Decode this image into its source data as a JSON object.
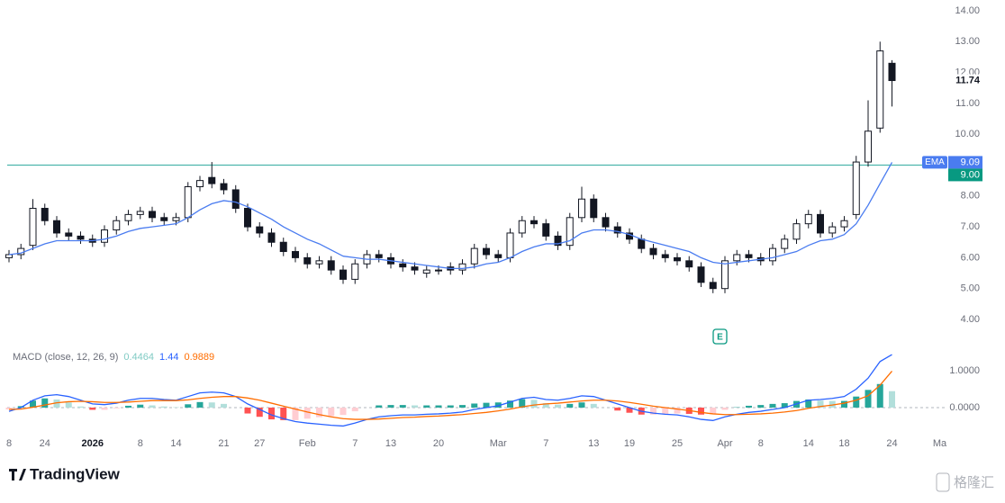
{
  "chart_data": [
    {
      "type": "candlestick",
      "categories": [
        "8",
        null,
        null,
        "24",
        null,
        null,
        null,
        "2026",
        null,
        null,
        null,
        "8",
        null,
        null,
        "14",
        null,
        null,
        null,
        "21",
        null,
        null,
        "27",
        null,
        null,
        null,
        "Feb",
        null,
        null,
        null,
        "7",
        null,
        null,
        "13",
        null,
        null,
        null,
        "20",
        null,
        null,
        null,
        null,
        "Mar",
        null,
        null,
        null,
        "7",
        null,
        null,
        null,
        "13",
        null,
        null,
        "19",
        null,
        null,
        null,
        "25",
        null,
        null,
        null,
        "Apr",
        null,
        null,
        "8",
        null,
        null,
        null,
        "14",
        null,
        null,
        "18",
        null,
        null,
        null,
        "24",
        null,
        null,
        null,
        "Ma"
      ],
      "open": [
        6.0,
        6.1,
        6.4,
        7.6,
        7.2,
        6.8,
        6.7,
        6.6,
        6.5,
        6.9,
        7.2,
        7.4,
        7.5,
        7.3,
        7.2,
        7.3,
        8.3,
        8.6,
        8.4,
        8.2,
        7.6,
        7.0,
        6.8,
        6.5,
        6.2,
        6.0,
        5.8,
        5.9,
        5.6,
        5.3,
        5.8,
        6.1,
        6.0,
        5.8,
        5.7,
        5.5,
        5.6,
        5.7,
        5.6,
        5.8,
        6.3,
        6.1,
        6.0,
        6.8,
        7.2,
        7.1,
        6.7,
        6.4,
        7.3,
        7.9,
        7.3,
        7.0,
        6.8,
        6.6,
        6.3,
        6.1,
        6.0,
        5.9,
        5.7,
        5.2,
        5.0,
        5.9,
        6.1,
        6.0,
        5.9,
        6.3,
        6.6,
        7.1,
        7.4,
        6.8,
        7.0,
        7.4,
        9.1,
        10.2,
        12.3,
        null,
        null,
        null,
        null
      ],
      "high": [
        6.25,
        6.45,
        7.9,
        7.75,
        7.35,
        6.95,
        6.85,
        6.75,
        7.05,
        7.35,
        7.55,
        7.65,
        7.65,
        7.45,
        7.45,
        8.45,
        8.65,
        9.1,
        8.55,
        8.35,
        7.75,
        7.15,
        6.95,
        6.65,
        6.35,
        6.15,
        6.05,
        6.05,
        5.75,
        5.95,
        6.25,
        6.25,
        6.15,
        5.95,
        5.85,
        5.75,
        5.75,
        5.85,
        5.95,
        6.45,
        6.45,
        6.25,
        6.95,
        7.35,
        7.35,
        7.25,
        6.85,
        7.45,
        8.3,
        8.05,
        7.45,
        7.15,
        6.95,
        6.75,
        6.45,
        6.25,
        6.15,
        6.05,
        5.85,
        5.35,
        6.05,
        6.25,
        6.25,
        6.15,
        6.45,
        6.75,
        7.25,
        7.55,
        7.55,
        7.15,
        7.35,
        9.3,
        11.1,
        13.0,
        12.4,
        null,
        null,
        null,
        null
      ],
      "low": [
        5.85,
        5.95,
        6.25,
        7.05,
        6.65,
        6.55,
        6.45,
        6.35,
        6.35,
        6.75,
        7.05,
        7.25,
        7.15,
        7.05,
        7.05,
        7.15,
        8.15,
        8.25,
        8.05,
        7.45,
        6.85,
        6.65,
        6.35,
        6.05,
        5.85,
        5.65,
        5.65,
        5.45,
        5.15,
        5.15,
        5.65,
        5.85,
        5.65,
        5.55,
        5.45,
        5.35,
        5.45,
        5.45,
        5.45,
        5.65,
        5.95,
        5.85,
        5.85,
        6.65,
        6.95,
        6.55,
        6.25,
        6.25,
        7.15,
        7.15,
        6.85,
        6.65,
        6.45,
        6.15,
        5.95,
        5.85,
        5.75,
        5.55,
        5.05,
        4.85,
        4.85,
        5.75,
        5.85,
        5.75,
        5.75,
        6.15,
        6.45,
        6.95,
        6.65,
        6.65,
        6.85,
        7.25,
        8.95,
        10.05,
        10.9,
        null,
        null,
        null,
        null
      ],
      "close": [
        6.1,
        6.3,
        7.6,
        7.2,
        6.8,
        6.7,
        6.6,
        6.5,
        6.9,
        7.2,
        7.4,
        7.5,
        7.3,
        7.2,
        7.3,
        8.3,
        8.5,
        8.4,
        8.2,
        7.6,
        7.0,
        6.8,
        6.5,
        6.2,
        6.0,
        5.8,
        5.9,
        5.6,
        5.3,
        5.8,
        6.1,
        6.0,
        5.8,
        5.7,
        5.6,
        5.6,
        5.6,
        5.6,
        5.8,
        6.3,
        6.1,
        6.0,
        6.8,
        7.2,
        7.1,
        6.7,
        6.4,
        7.3,
        7.9,
        7.3,
        7.0,
        6.8,
        6.6,
        6.3,
        6.1,
        6.0,
        5.9,
        5.7,
        5.2,
        5.0,
        5.9,
        6.1,
        6.0,
        5.9,
        6.3,
        6.6,
        7.1,
        7.4,
        6.8,
        7.0,
        7.2,
        9.1,
        10.1,
        12.7,
        11.74,
        null,
        null,
        null,
        null
      ],
      "up_color": "#ffffff",
      "down_color": "#131722",
      "ema": {
        "name": "EMA",
        "color": "#4a7cf0",
        "values": [
          6.1,
          6.15,
          6.3,
          6.45,
          6.55,
          6.55,
          6.55,
          6.55,
          6.6,
          6.7,
          6.85,
          6.95,
          7.0,
          7.05,
          7.1,
          7.3,
          7.55,
          7.75,
          7.85,
          7.8,
          7.65,
          7.45,
          7.25,
          7.0,
          6.8,
          6.6,
          6.45,
          6.25,
          6.05,
          6.0,
          5.95,
          5.95,
          5.9,
          5.85,
          5.8,
          5.75,
          5.7,
          5.65,
          5.65,
          5.7,
          5.8,
          5.85,
          6.0,
          6.2,
          6.35,
          6.45,
          6.45,
          6.55,
          6.8,
          6.9,
          6.9,
          6.85,
          6.75,
          6.6,
          6.5,
          6.4,
          6.3,
          6.2,
          6.0,
          5.85,
          5.8,
          5.85,
          5.9,
          5.95,
          6.0,
          6.1,
          6.2,
          6.4,
          6.55,
          6.6,
          6.75,
          7.1,
          7.7,
          8.4,
          9.09,
          null,
          null,
          null,
          null
        ]
      },
      "hline": {
        "value": 9,
        "label": "9.00",
        "color": "#4db6ac"
      },
      "earnings_marker": "E",
      "ylim": [
        3.3,
        14.35
      ],
      "yticks": [
        {
          "value": 4,
          "label": "4.00"
        },
        {
          "value": 5,
          "label": "5.00"
        },
        {
          "value": 6,
          "label": "6.00"
        },
        {
          "value": 7,
          "label": "7.00"
        },
        {
          "value": 8,
          "label": "8.00"
        },
        {
          "value": 9,
          "label": "9.00"
        },
        {
          "value": 10,
          "label": "10.00"
        },
        {
          "value": 11,
          "label": "11.00"
        },
        {
          "value": 12,
          "label": "12.00"
        },
        {
          "value": 13,
          "label": "13.00"
        },
        {
          "value": 14,
          "label": "14.00"
        }
      ]
    },
    {
      "type": "macd",
      "title": "MACD (close, 12, 26, 9)",
      "histogram": {
        "colors": [
          "#26a69a",
          "#b2dfdb",
          "#ff5252",
          "#ffcdd2"
        ],
        "legend_color": "#80cbc4",
        "values": [
          -0.05,
          0.04,
          0.19,
          0.25,
          0.22,
          0.14,
          0.03,
          -0.06,
          -0.06,
          -0.02,
          0.05,
          0.08,
          0.06,
          0.03,
          0.01,
          0.09,
          0.15,
          0.14,
          0.1,
          0.0,
          -0.16,
          -0.25,
          -0.32,
          -0.34,
          -0.34,
          -0.3,
          -0.26,
          -0.23,
          -0.2,
          -0.1,
          0.0,
          0.06,
          0.07,
          0.07,
          0.06,
          0.06,
          0.06,
          0.06,
          0.07,
          0.11,
          0.13,
          0.14,
          0.19,
          0.23,
          0.21,
          0.12,
          0.08,
          0.1,
          0.14,
          0.1,
          0.0,
          -0.08,
          -0.14,
          -0.19,
          -0.19,
          -0.18,
          -0.16,
          -0.17,
          -0.19,
          -0.18,
          -0.06,
          0.01,
          0.05,
          0.07,
          0.1,
          0.12,
          0.18,
          0.22,
          0.19,
          0.18,
          0.18,
          0.3,
          0.48,
          0.64,
          0.4464,
          null,
          null,
          null,
          null
        ]
      },
      "macd": {
        "color": "#2962ff",
        "values": [
          -0.1,
          0.0,
          0.2,
          0.32,
          0.35,
          0.3,
          0.2,
          0.1,
          0.08,
          0.12,
          0.2,
          0.25,
          0.25,
          0.22,
          0.2,
          0.3,
          0.4,
          0.42,
          0.4,
          0.3,
          0.1,
          -0.05,
          -0.2,
          -0.3,
          -0.38,
          -0.42,
          -0.45,
          -0.48,
          -0.5,
          -0.42,
          -0.32,
          -0.25,
          -0.22,
          -0.2,
          -0.2,
          -0.18,
          -0.17,
          -0.15,
          -0.12,
          -0.05,
          0.0,
          0.05,
          0.15,
          0.25,
          0.28,
          0.22,
          0.2,
          0.25,
          0.32,
          0.3,
          0.2,
          0.1,
          0.0,
          -0.1,
          -0.15,
          -0.18,
          -0.2,
          -0.25,
          -0.32,
          -0.35,
          -0.25,
          -0.18,
          -0.13,
          -0.1,
          -0.05,
          0.0,
          0.1,
          0.2,
          0.22,
          0.25,
          0.3,
          0.5,
          0.8,
          1.25,
          1.44,
          null,
          null,
          null,
          null
        ]
      },
      "signal": {
        "color": "#ff6d00",
        "values": [
          -0.05,
          -0.04,
          0.01,
          0.07,
          0.13,
          0.16,
          0.17,
          0.16,
          0.14,
          0.14,
          0.15,
          0.17,
          0.19,
          0.19,
          0.19,
          0.21,
          0.25,
          0.28,
          0.3,
          0.3,
          0.26,
          0.2,
          0.12,
          0.04,
          -0.04,
          -0.12,
          -0.19,
          -0.25,
          -0.3,
          -0.32,
          -0.32,
          -0.31,
          -0.29,
          -0.27,
          -0.26,
          -0.24,
          -0.23,
          -0.21,
          -0.19,
          -0.16,
          -0.13,
          -0.09,
          -0.04,
          0.02,
          0.07,
          0.1,
          0.12,
          0.15,
          0.18,
          0.2,
          0.2,
          0.18,
          0.14,
          0.09,
          0.04,
          0.0,
          -0.04,
          -0.08,
          -0.13,
          -0.17,
          -0.19,
          -0.19,
          -0.18,
          -0.17,
          -0.15,
          -0.12,
          -0.08,
          -0.02,
          0.03,
          0.07,
          0.12,
          0.2,
          0.32,
          0.61,
          0.9889,
          null,
          null,
          null,
          null
        ]
      },
      "ylim": [
        -0.66,
        1.66
      ],
      "yticks": [
        {
          "value": 1,
          "label": "1.0000"
        },
        {
          "value": 0,
          "label": "0.0000"
        }
      ]
    }
  ],
  "branding": {
    "logo": "TradingView",
    "watermark": "格隆汇"
  }
}
